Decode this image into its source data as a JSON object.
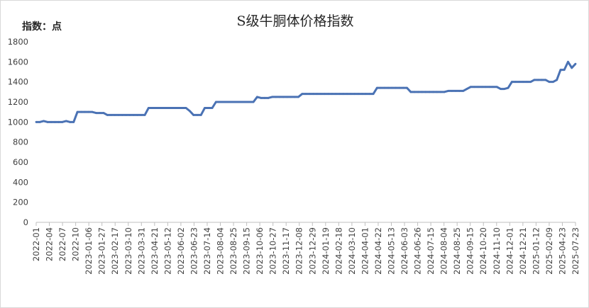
{
  "chart_data": {
    "type": "line",
    "title": "S级牛胴体价格指数",
    "ylabel": "指数：点",
    "xlabel": "",
    "ylim": [
      0,
      1800
    ],
    "yticks": [
      0,
      200,
      400,
      600,
      800,
      1000,
      1200,
      1400,
      1600,
      1800
    ],
    "grid": false,
    "legend": "none",
    "line_color": "#4a72b4",
    "x_tick_labels": [
      "2022-01",
      "2022-04",
      "2022-07",
      "2022-10",
      "2023-01-06",
      "2023-01-27",
      "2023-02-17",
      "2023-03-10",
      "2023-03-31",
      "2023-04-21",
      "2023-05-12",
      "2023-06-02",
      "2023-06-23",
      "2023-07-14",
      "2023-08-04",
      "2023-08-25",
      "2023-09-15",
      "2023-10-06",
      "2023-10-27",
      "2023-11-17",
      "2023-12-08",
      "2023-12-29",
      "2024-01-19",
      "2024-02-18",
      "2024-03-10",
      "2024-04-01",
      "2024-04-22",
      "2024-05-13",
      "2024-06-03",
      "2024-06-26",
      "2024-07-15",
      "2024-08-04",
      "2024-08-25",
      "2024-09-15",
      "2024-10-20",
      "2024-11-10",
      "2024-12-01",
      "2024-12-21",
      "2025-01-12",
      "2025-02-09",
      "2025-04-23",
      "2025-07-23"
    ],
    "values": [
      1000,
      1000,
      1010,
      1000,
      1000,
      1000,
      1000,
      1000,
      1010,
      1000,
      1000,
      1100,
      1100,
      1100,
      1100,
      1100,
      1090,
      1090,
      1090,
      1070,
      1070,
      1070,
      1070,
      1070,
      1070,
      1070,
      1070,
      1070,
      1070,
      1070,
      1140,
      1140,
      1140,
      1140,
      1140,
      1140,
      1140,
      1140,
      1140,
      1140,
      1140,
      1110,
      1070,
      1070,
      1070,
      1140,
      1140,
      1140,
      1200,
      1200,
      1200,
      1200,
      1200,
      1200,
      1200,
      1200,
      1200,
      1200,
      1200,
      1250,
      1240,
      1240,
      1240,
      1250,
      1250,
      1250,
      1250,
      1250,
      1250,
      1250,
      1250,
      1280,
      1280,
      1280,
      1280,
      1280,
      1280,
      1280,
      1280,
      1280,
      1280,
      1280,
      1280,
      1280,
      1280,
      1280,
      1280,
      1280,
      1280,
      1280,
      1280,
      1340,
      1340,
      1340,
      1340,
      1340,
      1340,
      1340,
      1340,
      1340,
      1300,
      1300,
      1300,
      1300,
      1300,
      1300,
      1300,
      1300,
      1300,
      1300,
      1310,
      1310,
      1310,
      1310,
      1310,
      1330,
      1350,
      1350,
      1350,
      1350,
      1350,
      1350,
      1350,
      1350,
      1330,
      1330,
      1340,
      1400,
      1400,
      1400,
      1400,
      1400,
      1400,
      1420,
      1420,
      1420,
      1420,
      1400,
      1400,
      1420,
      1520,
      1520,
      1600,
      1540,
      1580
    ]
  }
}
